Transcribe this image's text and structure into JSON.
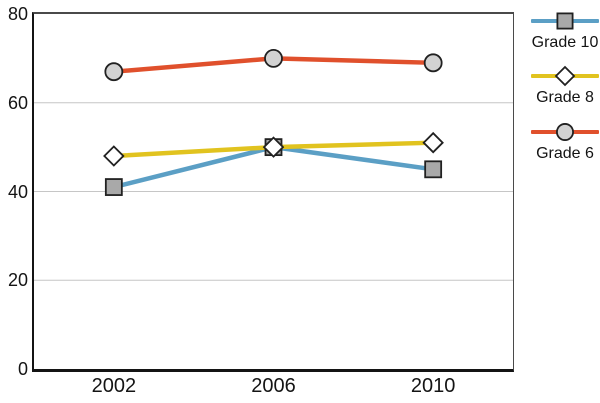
{
  "chart_data": {
    "type": "line",
    "title": "",
    "xlabel": "",
    "ylabel": "",
    "categories": [
      "2002",
      "2006",
      "2010"
    ],
    "series": [
      {
        "name": "Grade 10",
        "marker": "square",
        "color": "#5B9FC5",
        "marker_fill": "#A9A9A9",
        "values": [
          41,
          50,
          45
        ]
      },
      {
        "name": "Grade 8",
        "marker": "diamond",
        "color": "#E1C31F",
        "marker_fill": "#FFFFFF",
        "values": [
          48,
          50,
          51
        ]
      },
      {
        "name": "Grade 6",
        "marker": "circle",
        "color": "#E0502C",
        "marker_fill": "#D2D2D2",
        "values": [
          67,
          70,
          69
        ]
      }
    ],
    "ylim": [
      0,
      80
    ],
    "yticks": [
      0,
      20,
      40,
      60,
      80
    ],
    "grid": true,
    "gridlines_at": [
      20,
      40,
      60
    ],
    "legend_position": "right",
    "legend_order": [
      "Grade 10",
      "Grade 8",
      "Grade 6"
    ]
  },
  "colors": {
    "background": "#FFFFFF",
    "axis": "#141414",
    "frame": "#4A4A4A",
    "grid": "#C6C6C6",
    "marker_stroke": "#212121",
    "text": "#141414"
  }
}
